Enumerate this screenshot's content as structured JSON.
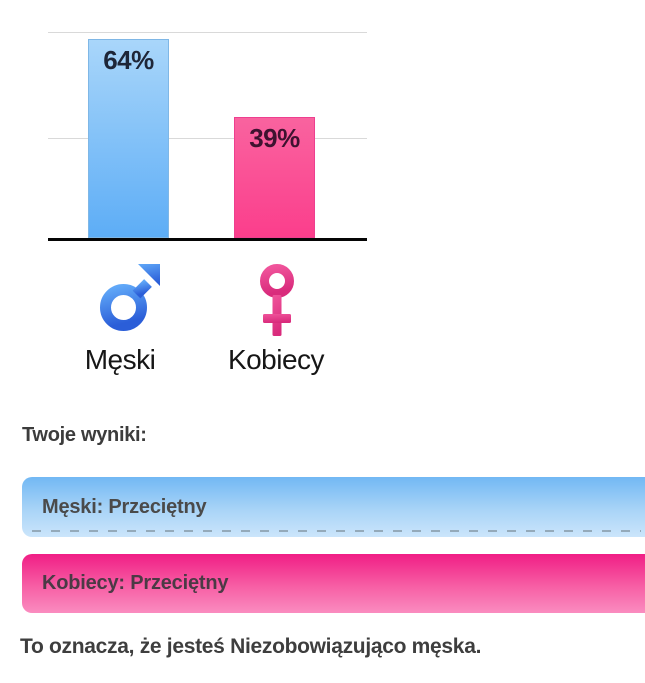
{
  "chart_data": {
    "type": "bar",
    "categories": [
      "Męski",
      "Kobiecy"
    ],
    "values": [
      64,
      39
    ],
    "data_labels": [
      "64%",
      "39%"
    ],
    "title": "",
    "xlabel": "",
    "ylabel": "",
    "ylim": [
      0,
      77
    ],
    "gridline_values": [
      33,
      66
    ],
    "grid": "horizontal light gray lines, black baseline",
    "legend_position": "below axis, icon + label per category",
    "bar_colors": [
      "#5dadf6",
      "#fb3e8c"
    ]
  },
  "chart": {
    "bars": [
      {
        "category": "Męski",
        "value": 64,
        "value_label": "64%",
        "color_top": "#a9d6fa",
        "color_bottom": "#5dadf6"
      },
      {
        "category": "Kobiecy",
        "value": 39,
        "value_label": "39%",
        "color_top": "#f9639f",
        "color_bottom": "#fb3e8c"
      }
    ],
    "legend": [
      {
        "icon": "male-symbol-icon",
        "label": "Męski",
        "icon_color_top": "#60a8f8",
        "icon_color_bottom": "#2b5ed8"
      },
      {
        "icon": "female-symbol-icon",
        "label": "Kobiecy",
        "icon_color_top": "#f0549b",
        "icon_color_bottom": "#d92b7c"
      }
    ]
  },
  "results": {
    "heading": "Twoje wyniki:",
    "items": [
      {
        "label": "Męski: Przeciętny",
        "color_top": "#72b8f4",
        "color_bottom": "#cbe5fb"
      },
      {
        "label": "Kobiecy: Przeciętny",
        "color_top": "#f01e85",
        "color_bottom": "#fa8cbf"
      }
    ],
    "conclusion": "To oznacza, że jesteś Niezobowiązująco męska."
  }
}
